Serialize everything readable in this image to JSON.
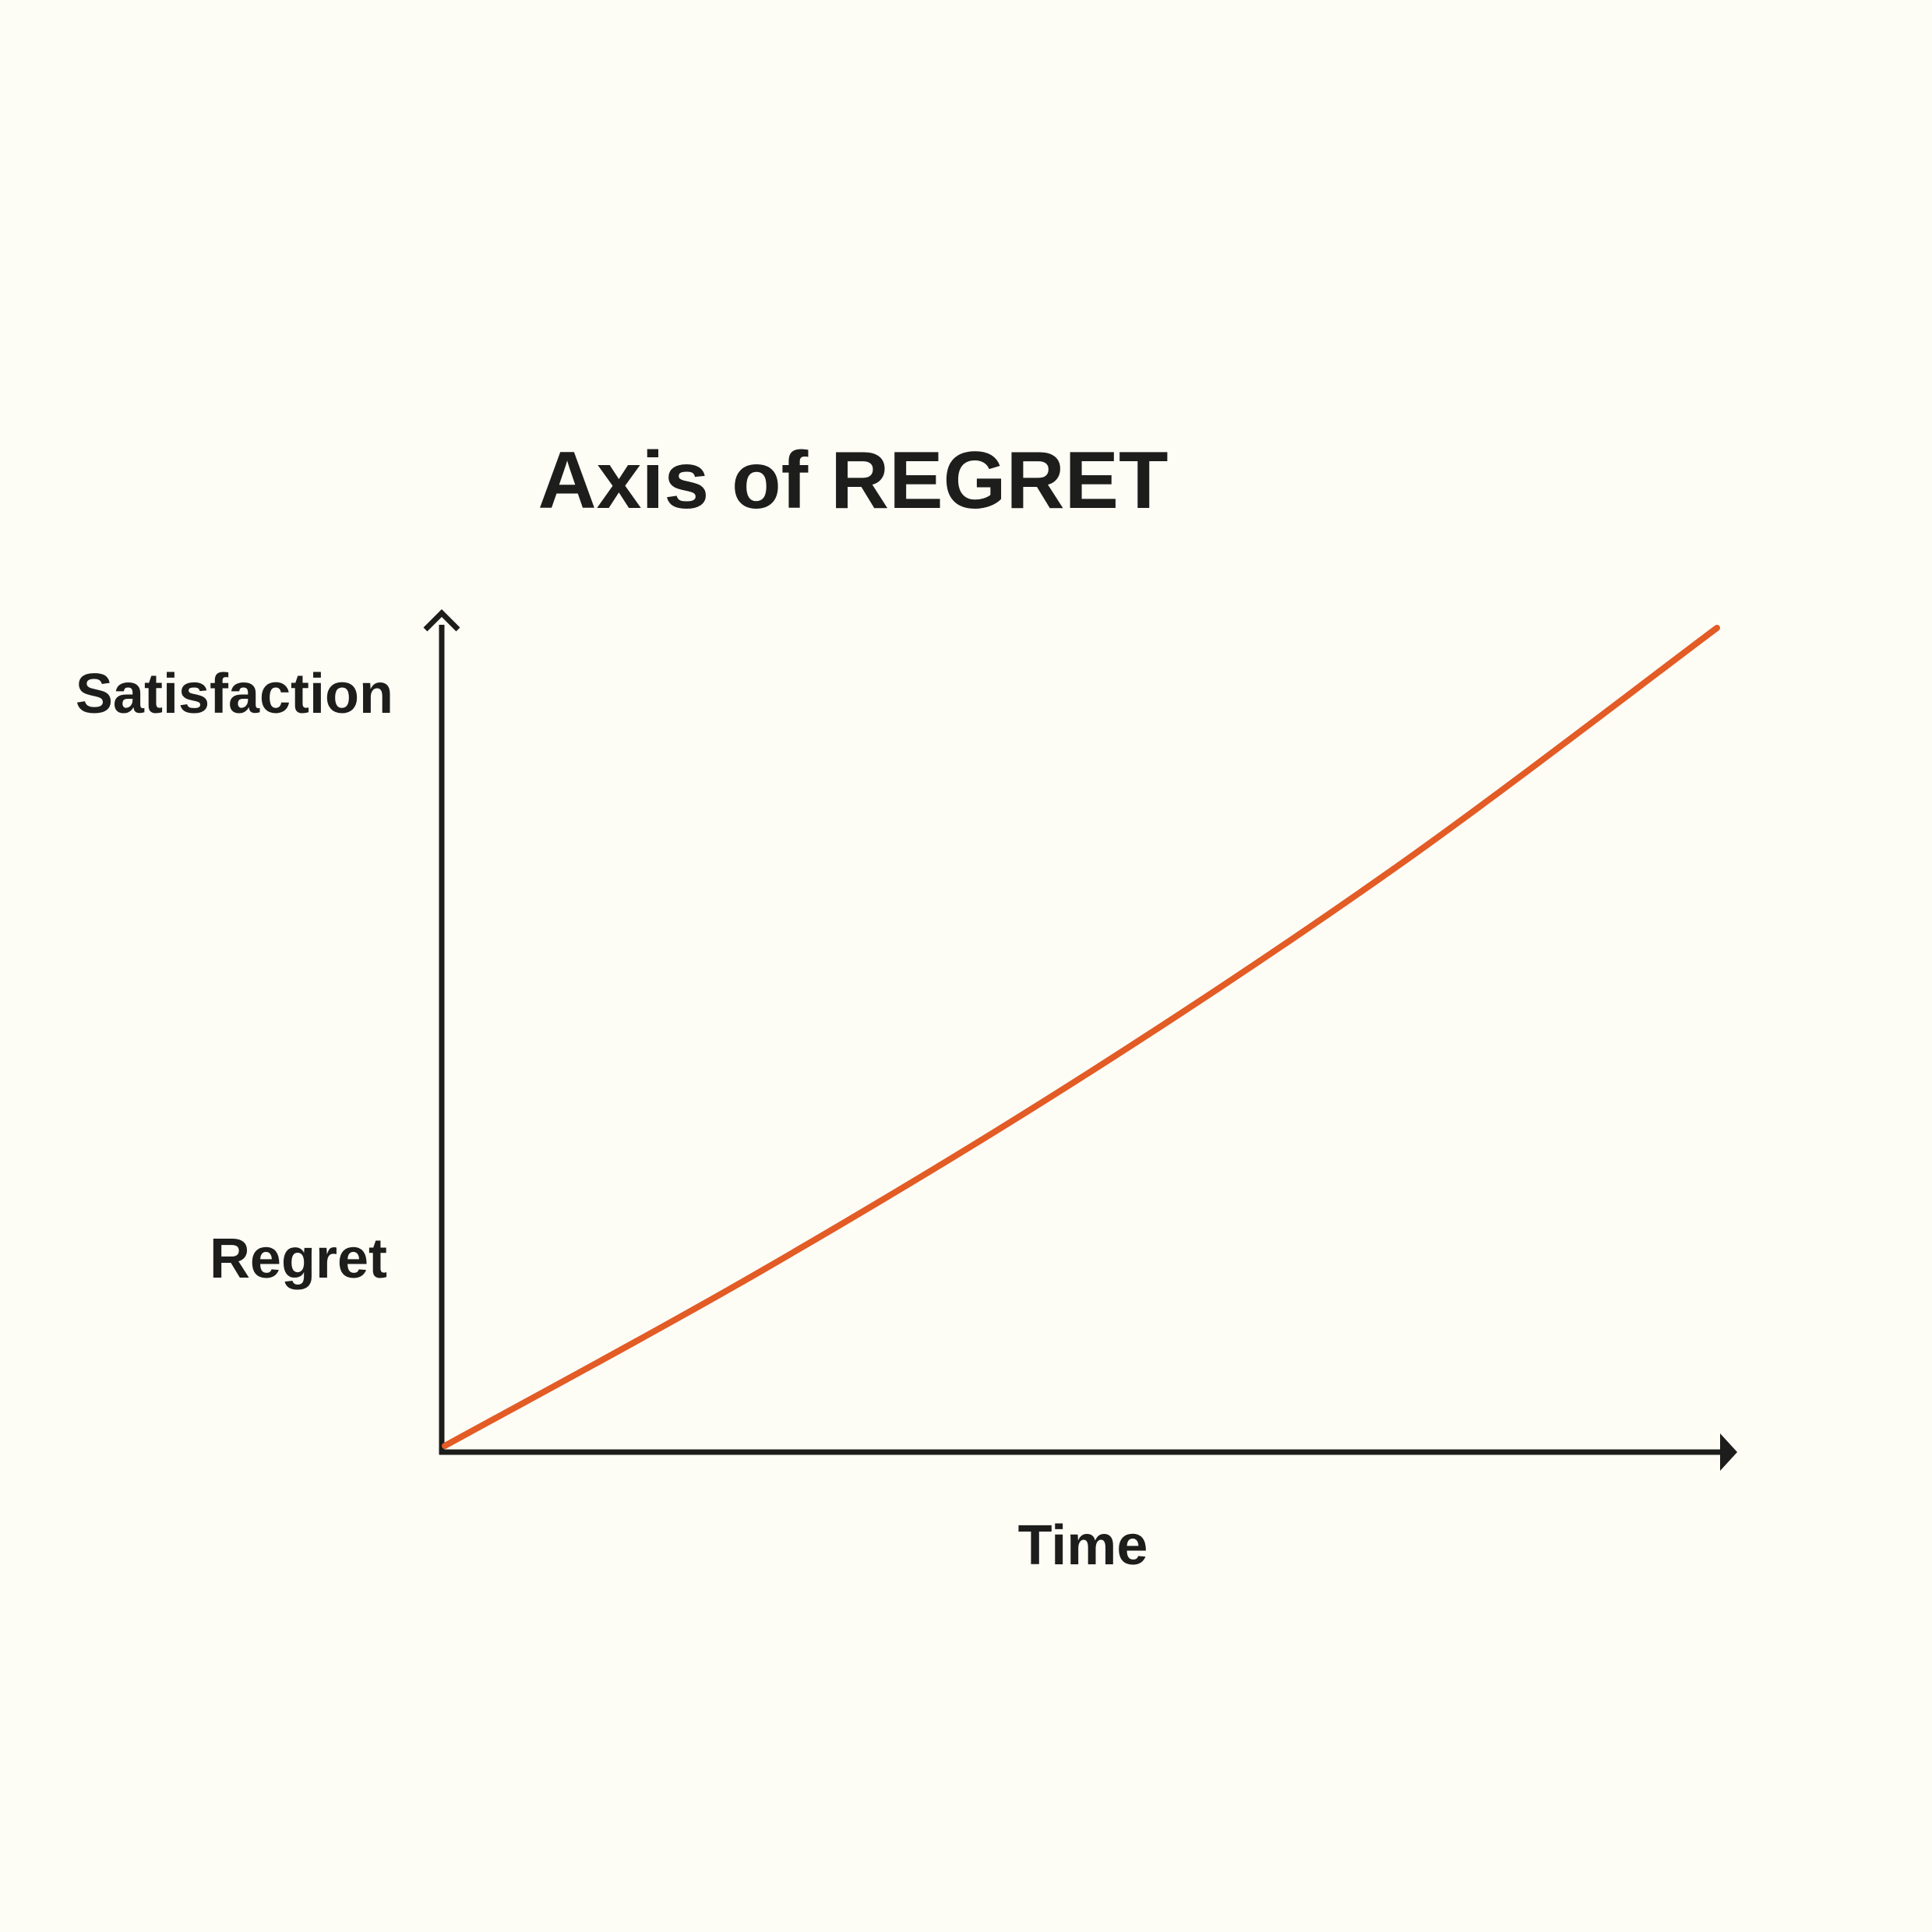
{
  "chart_data": {
    "type": "line",
    "title": "Axis of REGRET",
    "xlabel": "Time",
    "ylabel_top": "Satisfaction",
    "ylabel_bottom": "Regret",
    "x": [
      0,
      0.25,
      0.5,
      0.75,
      1.0
    ],
    "series": [
      {
        "values": [
          0,
          0.215,
          0.45,
          0.71,
          1.0
        ],
        "color": "#e35b25"
      }
    ],
    "xlim": [
      0,
      1
    ],
    "ylim": [
      0,
      1
    ],
    "grid": false,
    "axis_color": "#1d1d1b",
    "background": "#fdfdf6"
  }
}
